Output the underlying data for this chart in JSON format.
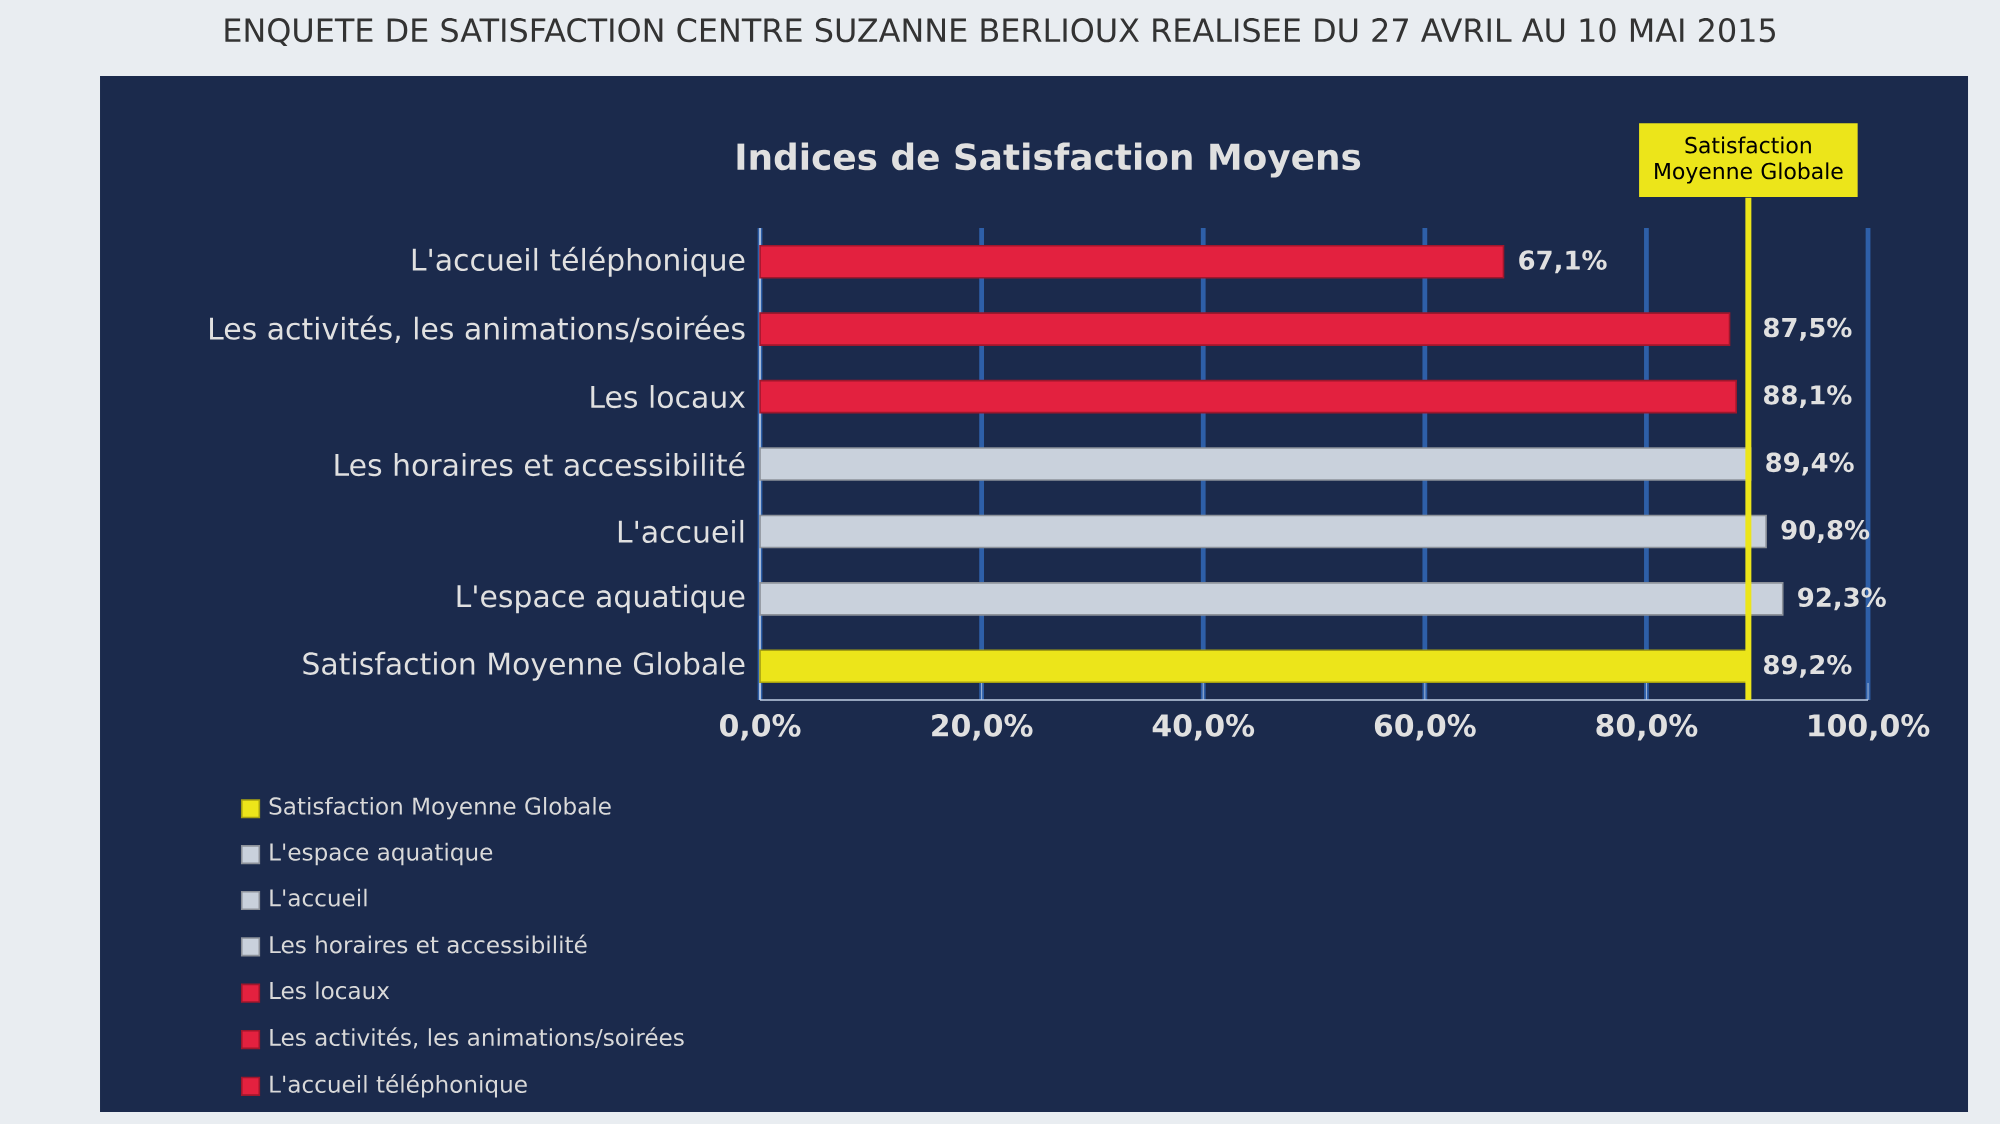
{
  "chart_data": {
    "type": "bar",
    "orientation": "horizontal",
    "title": "ENQUETE DE SATISFACTION CENTRE SUZANNE BERLIOUX REALISEE DU 27 AVRIL AU 10 MAI 2015",
    "subtitle": "Indices de Satisfaction Moyens",
    "categories": [
      "L'accueil téléphonique",
      "Les activités, les animations/soirées",
      "Les locaux",
      "Les horaires et accessibilité",
      "L'accueil",
      "L'espace aquatique",
      "Satisfaction Moyenne Globale"
    ],
    "series": [
      {
        "name": "L'accueil téléphonique",
        "color": "#e3213f",
        "values": [
          67.1,
          null,
          null,
          null,
          null,
          null,
          null
        ],
        "value_labels": [
          "67,1%",
          null,
          null,
          null,
          null,
          null,
          null
        ]
      },
      {
        "name": "Les activités, les animations/soirées",
        "color": "#e3213f",
        "values": [
          null,
          87.5,
          null,
          null,
          null,
          null,
          null
        ],
        "value_labels": [
          null,
          "87,5%",
          null,
          null,
          null,
          null,
          null
        ]
      },
      {
        "name": "Les locaux",
        "color": "#e3213f",
        "values": [
          null,
          null,
          88.1,
          null,
          null,
          null,
          null
        ],
        "value_labels": [
          null,
          null,
          "88,1%",
          null,
          null,
          null,
          null
        ]
      },
      {
        "name": "Les horaires et accessibilité",
        "color": "#c9d1dc",
        "values": [
          null,
          null,
          null,
          89.4,
          null,
          null,
          null
        ],
        "value_labels": [
          null,
          null,
          null,
          "89,4%",
          null,
          null,
          null
        ]
      },
      {
        "name": "L'accueil",
        "color": "#c9d1dc",
        "values": [
          null,
          null,
          null,
          null,
          90.8,
          null,
          null
        ],
        "value_labels": [
          null,
          null,
          null,
          null,
          "90,8%",
          null,
          null
        ]
      },
      {
        "name": "L'espace aquatique",
        "color": "#c9d1dc",
        "values": [
          null,
          null,
          null,
          null,
          null,
          92.3,
          null
        ],
        "value_labels": [
          null,
          null,
          null,
          null,
          null,
          "92,3%",
          null
        ]
      },
      {
        "name": "Satisfaction Moyenne Globale",
        "color": "#ece51a",
        "values": [
          null,
          null,
          null,
          null,
          null,
          null,
          89.2
        ],
        "value_labels": [
          null,
          null,
          null,
          null,
          null,
          null,
          "89,2%"
        ]
      }
    ],
    "xlim": [
      0,
      100
    ],
    "xticks": [
      {
        "value": 0,
        "label": "0,0%"
      },
      {
        "value": 20,
        "label": "20,0%"
      },
      {
        "value": 40,
        "label": "40,0%"
      },
      {
        "value": 60,
        "label": "60,0%"
      },
      {
        "value": 80,
        "label": "80,0%"
      },
      {
        "value": 100,
        "label": "100,0%"
      }
    ],
    "grid": "x",
    "legend": "bottom left",
    "ref_lines": [
      {
        "axis": "x",
        "value": 89.2,
        "label": "Satisfaction Moyenne Globale",
        "color": "#ece51a"
      }
    ]
  }
}
